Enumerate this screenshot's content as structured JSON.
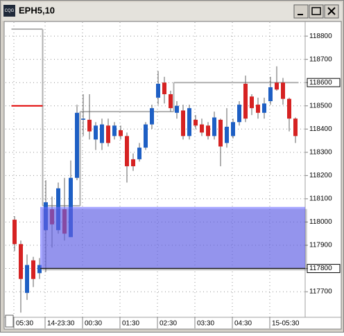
{
  "window": {
    "title": "EPH5,10",
    "icon_text": "CQG"
  },
  "chart_data": {
    "type": "candlestick",
    "categories": [
      "05:30",
      null,
      null,
      null,
      null,
      "14-23:30",
      null,
      null,
      null,
      null,
      null,
      "00:30",
      null,
      null,
      null,
      null,
      null,
      "01:30",
      null,
      null,
      null,
      null,
      null,
      "02:30",
      null,
      null,
      null,
      null,
      null,
      "03:30",
      null,
      null,
      null,
      null,
      null,
      "04:30",
      null,
      null,
      null,
      null,
      null,
      "15-05:30",
      null,
      null,
      null,
      null
    ],
    "open": [
      118010,
      117905,
      117695,
      117835,
      117780,
      117965,
      118055,
      117965,
      118055,
      117935,
      118190,
      118440,
      118440,
      118355,
      118340,
      118415,
      118370,
      118395,
      118370,
      118270,
      118270,
      118320,
      118420,
      118535,
      118600,
      118550,
      118470,
      118480,
      118370,
      118440,
      118420,
      118415,
      118370,
      118440,
      118340,
      118370,
      118430,
      118595,
      118540,
      118505,
      118470,
      118520,
      118600,
      118600,
      118530,
      118445
    ],
    "high": [
      118025,
      117920,
      117860,
      117850,
      117845,
      118180,
      118110,
      118170,
      118190,
      118265,
      118505,
      118550,
      118550,
      118430,
      118445,
      118445,
      118430,
      118415,
      118385,
      118295,
      118340,
      118430,
      118505,
      118650,
      118625,
      118565,
      118520,
      118505,
      118505,
      118460,
      118445,
      118430,
      118475,
      118445,
      118490,
      118445,
      118520,
      118630,
      118550,
      118535,
      118535,
      118625,
      118670,
      118620,
      118535,
      118450
    ],
    "low": [
      117875,
      117610,
      117665,
      117720,
      117755,
      117785,
      117890,
      117950,
      117920,
      117935,
      118180,
      118370,
      118355,
      118310,
      118310,
      118325,
      118355,
      118355,
      118170,
      118220,
      118260,
      118310,
      118400,
      118505,
      118510,
      118475,
      118445,
      118355,
      118355,
      118400,
      118370,
      118355,
      118355,
      118240,
      118320,
      118360,
      118415,
      118430,
      118460,
      118445,
      118445,
      118505,
      118565,
      118505,
      118390,
      118340
    ],
    "close": [
      117905,
      117755,
      117815,
      117755,
      117815,
      118085,
      117990,
      118145,
      117950,
      118190,
      118470,
      118445,
      118390,
      118415,
      118420,
      118340,
      118415,
      118370,
      118240,
      118240,
      118320,
      118420,
      118490,
      118595,
      118550,
      118490,
      118500,
      118370,
      118490,
      118415,
      118385,
      118370,
      118450,
      118325,
      118410,
      118430,
      118505,
      118445,
      118490,
      118470,
      118510,
      118580,
      118570,
      118530,
      118445,
      118370
    ],
    "up_color": "#1e5fc4",
    "down_color": "#d62222",
    "ylim": [
      117590,
      118860
    ],
    "yticks": [
      117700,
      117800,
      117900,
      118000,
      118100,
      118200,
      118300,
      118400,
      118500,
      118600,
      118700,
      118800
    ],
    "grid": true,
    "lines": [
      {
        "color": "#b0b0b0",
        "values": [
          118830,
          118830,
          118830,
          118830,
          118830,
          118070,
          118070,
          118070,
          118070,
          118070,
          118070,
          118475,
          118475,
          118475,
          118475,
          118475,
          118475,
          118475,
          118475,
          118475,
          118475,
          118475,
          118475,
          118475,
          118475,
          118475,
          118600,
          118600,
          118600,
          118600,
          118600,
          118600,
          118600,
          118600,
          118600,
          118600,
          118600,
          118600,
          118600,
          118600,
          118600,
          118600,
          118600,
          118600,
          118600,
          118600
        ]
      },
      {
        "color": "#e00000",
        "values": [
          118500,
          118500,
          118500,
          118500,
          118500,
          null,
          null,
          null,
          null,
          null,
          null,
          null,
          null,
          null,
          null,
          null,
          null,
          null,
          null,
          null,
          null,
          null,
          null,
          null,
          null,
          null,
          null,
          null,
          null,
          null,
          null,
          null,
          null,
          null,
          null,
          null,
          null,
          null,
          null,
          null,
          null,
          null,
          null,
          null,
          null,
          null
        ]
      }
    ],
    "zone": {
      "from": 117800,
      "to": 118065,
      "color": "#6a6aff"
    },
    "price_levels": [
      118600,
      117800
    ]
  }
}
